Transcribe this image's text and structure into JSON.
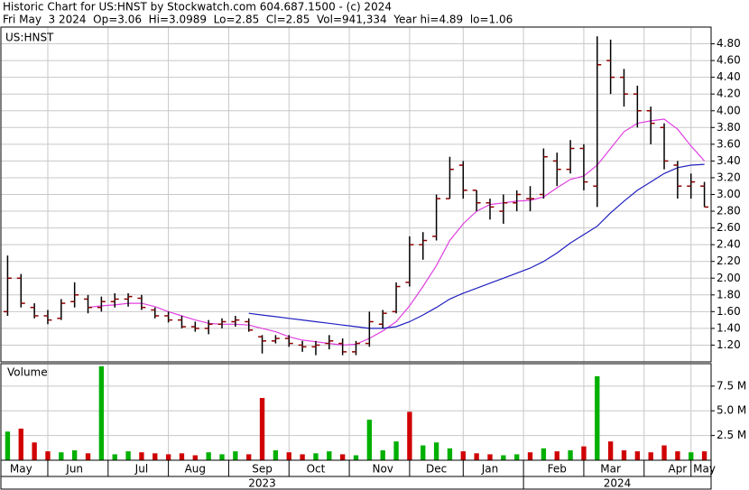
{
  "chart_data": [
    {
      "type": "ohlc",
      "title": "Historic Chart for US:HNST by Stockwatch.com 604.687.1500 - (c) 2024",
      "subtitle": "Fri May  3 2024  Op=3.06  Hi=3.0989  Lo=2.85  Cl=2.85  Vol=941,334  Year hi=4.89  lo=1.06",
      "symbol": "US:HNST",
      "categories": [
        null,
        "May",
        null,
        null,
        null,
        "Jun",
        null,
        null,
        null,
        null,
        "Jul",
        null,
        null,
        null,
        "Aug",
        null,
        null,
        null,
        null,
        "Sep",
        null,
        null,
        null,
        "Oct",
        null,
        null,
        null,
        null,
        "Nov",
        null,
        null,
        null,
        "Dec",
        null,
        null,
        null,
        "Jan",
        null,
        null,
        null,
        null,
        "Feb",
        null,
        null,
        null,
        "Mar",
        null,
        null,
        null,
        null,
        "Apr",
        null,
        "May"
      ],
      "groups": [
        "2023",
        "2024"
      ],
      "open": [
        1.6,
        2.0,
        1.65,
        1.55,
        1.52,
        1.72,
        1.75,
        1.65,
        1.72,
        1.75,
        1.76,
        1.62,
        1.55,
        1.5,
        1.42,
        1.4,
        1.45,
        1.48,
        1.48,
        1.3,
        1.25,
        1.28,
        1.2,
        1.18,
        1.22,
        1.22,
        1.12,
        1.22,
        1.45,
        1.6,
        1.95,
        2.4,
        2.5,
        2.95,
        3.35,
        3.05,
        2.9,
        2.8,
        2.9,
        2.95,
        3.0,
        3.4,
        3.3,
        3.55,
        3.1,
        4.6,
        4.4,
        4.2,
        4.0,
        3.8,
        3.35,
        3.1,
        3.1
      ],
      "high": [
        2.27,
        2.05,
        1.7,
        1.62,
        1.75,
        1.95,
        1.8,
        1.78,
        1.82,
        1.82,
        1.8,
        1.65,
        1.6,
        1.55,
        1.48,
        1.5,
        1.52,
        1.55,
        1.52,
        1.32,
        1.32,
        1.32,
        1.25,
        1.25,
        1.32,
        1.28,
        1.25,
        1.6,
        1.62,
        1.95,
        2.5,
        2.55,
        3.0,
        3.45,
        3.4,
        3.05,
        2.95,
        3.0,
        3.05,
        3.1,
        3.55,
        3.5,
        3.65,
        3.6,
        4.89,
        4.85,
        4.5,
        4.3,
        4.05,
        3.85,
        3.4,
        3.25,
        3.15
      ],
      "low": [
        1.55,
        1.65,
        1.52,
        1.45,
        1.5,
        1.65,
        1.58,
        1.6,
        1.65,
        1.66,
        1.62,
        1.52,
        1.47,
        1.4,
        1.36,
        1.33,
        1.4,
        1.42,
        1.36,
        1.1,
        1.22,
        1.18,
        1.12,
        1.08,
        1.15,
        1.08,
        1.08,
        1.18,
        1.4,
        1.58,
        1.9,
        2.22,
        2.45,
        2.95,
        2.95,
        2.8,
        2.7,
        2.65,
        2.8,
        2.8,
        2.95,
        3.1,
        3.25,
        3.05,
        2.85,
        4.2,
        4.05,
        3.8,
        3.6,
        3.3,
        2.95,
        2.95,
        2.85
      ],
      "close": [
        2.0,
        1.7,
        1.55,
        1.5,
        1.7,
        1.8,
        1.65,
        1.72,
        1.75,
        1.78,
        1.65,
        1.55,
        1.5,
        1.42,
        1.4,
        1.45,
        1.48,
        1.5,
        1.38,
        1.25,
        1.28,
        1.22,
        1.18,
        1.2,
        1.25,
        1.12,
        1.22,
        1.48,
        1.58,
        1.9,
        2.4,
        2.45,
        2.95,
        3.3,
        3.05,
        2.9,
        2.85,
        2.9,
        3.0,
        2.95,
        3.45,
        3.3,
        3.55,
        3.15,
        4.55,
        4.4,
        4.2,
        4.0,
        3.85,
        3.4,
        3.1,
        3.15,
        2.85
      ],
      "color": "#8b0000",
      "series": [
        {
          "color": "#e040e0",
          "values": [
            null,
            null,
            null,
            null,
            null,
            null,
            1.65,
            1.67,
            1.68,
            1.7,
            1.7,
            1.66,
            1.6,
            1.55,
            1.5,
            1.46,
            1.45,
            1.45,
            1.44,
            1.4,
            1.36,
            1.3,
            1.26,
            1.24,
            1.22,
            1.2,
            1.21,
            1.28,
            1.37,
            1.48,
            1.67,
            1.9,
            2.15,
            2.45,
            2.65,
            2.8,
            2.88,
            2.9,
            2.92,
            2.93,
            2.97,
            3.08,
            3.18,
            3.22,
            3.35,
            3.55,
            3.75,
            3.85,
            3.88,
            3.9,
            3.78,
            3.58,
            3.4
          ]
        },
        {
          "color": "#2020c0",
          "values": [
            null,
            null,
            null,
            null,
            null,
            null,
            null,
            null,
            null,
            null,
            null,
            null,
            null,
            null,
            null,
            null,
            null,
            null,
            1.58,
            1.56,
            1.54,
            1.52,
            1.5,
            1.48,
            1.46,
            1.44,
            1.42,
            1.4,
            1.4,
            1.42,
            1.48,
            1.56,
            1.65,
            1.75,
            1.82,
            1.88,
            1.94,
            2.0,
            2.06,
            2.12,
            2.2,
            2.3,
            2.42,
            2.52,
            2.62,
            2.78,
            2.92,
            3.05,
            3.15,
            3.25,
            3.32,
            3.35,
            3.36
          ]
        }
      ],
      "ylim": [
        1.0,
        5.0
      ],
      "yticks": [
        {
          "value": 1.2,
          "label": "1.20"
        },
        {
          "value": 1.4,
          "label": "1.40"
        },
        {
          "value": 1.6,
          "label": "1.60"
        },
        {
          "value": 1.8,
          "label": "1.80"
        },
        {
          "value": 2.0,
          "label": "2.00"
        },
        {
          "value": 2.2,
          "label": "2.20"
        },
        {
          "value": 2.4,
          "label": "2.40"
        },
        {
          "value": 2.6,
          "label": "2.60"
        },
        {
          "value": 2.8,
          "label": "2.80"
        },
        {
          "value": 3.0,
          "label": "3.00"
        },
        {
          "value": 3.2,
          "label": "3.20"
        },
        {
          "value": 3.4,
          "label": "3.40"
        },
        {
          "value": 3.6,
          "label": "3.60"
        },
        {
          "value": 3.8,
          "label": "3.80"
        },
        {
          "value": 4.0,
          "label": "4.00"
        },
        {
          "value": 4.2,
          "label": "4.20"
        },
        {
          "value": 4.4,
          "label": "4.40"
        },
        {
          "value": 4.6,
          "label": "4.60"
        },
        {
          "value": 4.8,
          "label": "4.80"
        }
      ],
      "grid": true
    },
    {
      "type": "bar",
      "title": "Volume",
      "values": [
        2.9,
        3.2,
        1.8,
        0.9,
        0.8,
        1.0,
        0.7,
        9.5,
        0.6,
        0.9,
        0.8,
        0.7,
        0.6,
        0.7,
        0.5,
        0.8,
        0.6,
        0.9,
        0.6,
        6.3,
        1.0,
        0.8,
        0.6,
        0.7,
        0.9,
        0.6,
        0.5,
        4.1,
        1.0,
        1.9,
        4.9,
        1.5,
        1.8,
        1.2,
        0.9,
        0.7,
        0.6,
        0.5,
        0.6,
        0.8,
        1.2,
        0.9,
        1.0,
        1.4,
        8.5,
        1.9,
        1.0,
        0.9,
        0.8,
        1.5,
        0.9,
        0.8,
        0.9
      ],
      "colors": [
        "#00b000",
        "#d00000",
        "#d00000",
        "#d00000",
        "#00b000",
        "#00b000",
        "#d00000",
        "#00b000",
        "#00b000",
        "#00b000",
        "#d00000",
        "#d00000",
        "#d00000",
        "#d00000",
        "#d00000",
        "#00b000",
        "#00b000",
        "#00b000",
        "#d00000",
        "#d00000",
        "#00b000",
        "#d00000",
        "#d00000",
        "#00b000",
        "#00b000",
        "#d00000",
        "#00b000",
        "#00b000",
        "#00b000",
        "#00b000",
        "#d00000",
        "#00b000",
        "#00b000",
        "#00b000",
        "#d00000",
        "#d00000",
        "#d00000",
        "#00b000",
        "#00b000",
        "#d00000",
        "#00b000",
        "#d00000",
        "#00b000",
        "#d00000",
        "#00b000",
        "#d00000",
        "#d00000",
        "#d00000",
        "#d00000",
        "#d00000",
        "#d00000",
        "#00b000",
        "#d00000"
      ],
      "ylim": [
        0,
        9.77
      ],
      "yticks": [
        {
          "value": 2.5,
          "label": "2.5 M"
        },
        {
          "value": 5.0,
          "label": "5.0 M"
        },
        {
          "value": 7.5,
          "label": "7.5 M"
        }
      ],
      "grid": true
    }
  ]
}
